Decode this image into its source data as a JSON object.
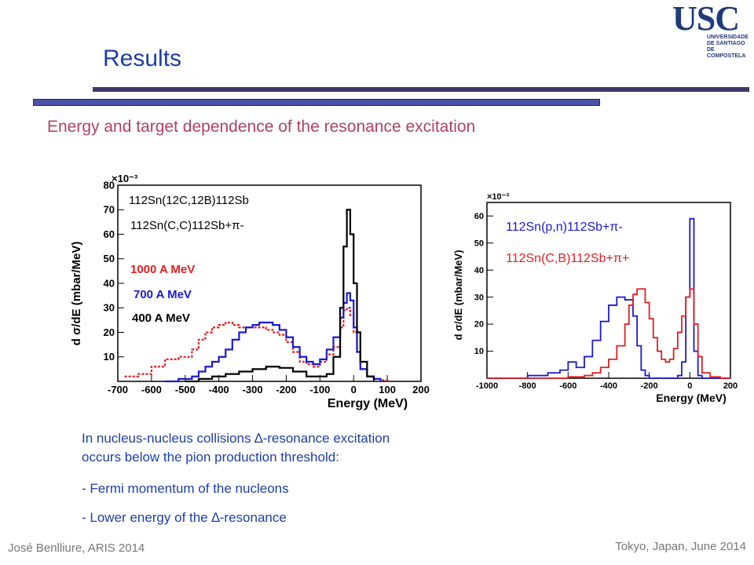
{
  "slide": {
    "title": "Results",
    "subtitle": "Energy and target dependence of the resonance excitation",
    "logo_text": "USC",
    "logo_sub": "UNIVERSIDADE DE SANTIAGO DE COMPOSTELA",
    "body_line1": "In nucleus-nucleus collisions ∆-resonance excitation",
    "body_line2": "occurs below the pion production threshold:",
    "bullets": [
      "-    Fermi momentum of the nucleons",
      "-    Lower energy of the ∆-resonance"
    ],
    "footer_left": "José Benlliure, ARIS 2014",
    "footer_right": "Tokyo, Japan, June 2014"
  },
  "colors": {
    "red": "#e02020",
    "blue": "#1a1ad0",
    "black": "#000000",
    "title": "#1d3fa0",
    "subtitle": "#b0406a"
  },
  "chart_data": [
    {
      "type": "line",
      "xlabel": "Energy (MeV)",
      "ylabel": "d σ/dE (mbar/MeV)",
      "y_multiplier": "×10⁻³",
      "xlim": [
        -700,
        200
      ],
      "ylim": [
        0,
        80
      ],
      "xticks": [
        "-700",
        "-600",
        "-500",
        "-400",
        "-300",
        "-200",
        "-100",
        "0",
        "100",
        "200"
      ],
      "yticks": [
        "10",
        "20",
        "30",
        "40",
        "50",
        "60",
        "70",
        "80"
      ],
      "reaction1": "112Sn(12C,12B)112Sb",
      "reaction2": "112Sn(C,C)112Sb+π-",
      "series": [
        {
          "name": "1000 A MeV",
          "color": "#e02020",
          "dashed": true,
          "x": [
            -680,
            -640,
            -600,
            -560,
            -520,
            -500,
            -480,
            -460,
            -440,
            -420,
            -400,
            -380,
            -360,
            -340,
            -320,
            -300,
            -280,
            -260,
            -240,
            -220,
            -200,
            -180,
            -160,
            -140,
            -120,
            -100,
            -80,
            -60,
            -40,
            -30,
            -20,
            -10,
            0,
            10,
            20,
            40,
            60,
            80,
            100
          ],
          "y": [
            2,
            3,
            6,
            9,
            10,
            10,
            13,
            17,
            20,
            22,
            23,
            24,
            23,
            22,
            22,
            22,
            22,
            21,
            20,
            19,
            16,
            12,
            8,
            7,
            6,
            8,
            11,
            14,
            22,
            29,
            30,
            27,
            20,
            12,
            5,
            2,
            1,
            0.5,
            0
          ]
        },
        {
          "name": "700 A MeV",
          "color": "#1a1ad0",
          "dashed": false,
          "x": [
            -560,
            -520,
            -480,
            -460,
            -440,
            -420,
            -400,
            -380,
            -360,
            -340,
            -320,
            -300,
            -280,
            -260,
            -240,
            -220,
            -200,
            -180,
            -160,
            -140,
            -120,
            -100,
            -80,
            -60,
            -40,
            -30,
            -20,
            -10,
            0,
            10,
            20,
            40,
            60,
            80
          ],
          "y": [
            0,
            1,
            2,
            4,
            6,
            8,
            10,
            13,
            17,
            20,
            22,
            23,
            24,
            24,
            23,
            21,
            18,
            14,
            10,
            8,
            7,
            9,
            13,
            18,
            26,
            32,
            36,
            33,
            22,
            12,
            5,
            2,
            1,
            0
          ]
        },
        {
          "name": "400 A MeV",
          "color": "#000000",
          "dashed": false,
          "x": [
            -500,
            -460,
            -420,
            -380,
            -340,
            -300,
            -260,
            -220,
            -180,
            -140,
            -100,
            -80,
            -60,
            -40,
            -30,
            -20,
            -10,
            0,
            10,
            20,
            40,
            60
          ],
          "y": [
            0,
            1,
            2,
            3,
            4,
            5,
            6,
            5.5,
            4,
            2,
            2,
            3,
            10,
            30,
            55,
            70,
            60,
            40,
            20,
            8,
            2,
            0
          ]
        }
      ]
    },
    {
      "type": "line",
      "xlabel": "Energy (MeV)",
      "ylabel": "d σ/dE (mbar/MeV)",
      "y_multiplier": "×10⁻³",
      "xlim": [
        -1000,
        200
      ],
      "ylim": [
        0,
        65
      ],
      "xticks": [
        "-1000",
        "-800",
        "-600",
        "-400",
        "-200",
        "0",
        "200"
      ],
      "yticks": [
        "10",
        "20",
        "30",
        "40",
        "50",
        "60"
      ],
      "series": [
        {
          "name": "112Sn(p,n)112Sb+π-",
          "color": "#1a1ad0",
          "x": [
            -1000,
            -900,
            -800,
            -700,
            -640,
            -600,
            -560,
            -520,
            -480,
            -440,
            -400,
            -360,
            -320,
            -280,
            -260,
            -240,
            -220,
            -200,
            -180,
            -160,
            -140,
            -120,
            -100,
            -80,
            -60,
            -40,
            -20,
            0,
            20,
            40,
            60,
            100,
            200
          ],
          "y": [
            0,
            0,
            1,
            2,
            3,
            6,
            4,
            8,
            14,
            21,
            27,
            30,
            29,
            23,
            12,
            3,
            1,
            0,
            0,
            0,
            0,
            0,
            0,
            0,
            1,
            6,
            30,
            59,
            10,
            1,
            0,
            0,
            0
          ]
        },
        {
          "name": "112Sn(C,B)112Sb+π+",
          "color": "#e02020",
          "x": [
            -1000,
            -800,
            -700,
            -600,
            -520,
            -480,
            -440,
            -400,
            -360,
            -320,
            -300,
            -280,
            -260,
            -240,
            -220,
            -200,
            -180,
            -160,
            -140,
            -120,
            -100,
            -80,
            -60,
            -40,
            -20,
            0,
            20,
            40,
            60,
            100,
            150,
            200
          ],
          "y": [
            0,
            0,
            0,
            0.5,
            1,
            2,
            4,
            7,
            12,
            20,
            27,
            31,
            33,
            33,
            28,
            22,
            15,
            10,
            7,
            6,
            7,
            11,
            17,
            23,
            30,
            33,
            20,
            8,
            2,
            0.5,
            0,
            0
          ]
        }
      ]
    }
  ]
}
